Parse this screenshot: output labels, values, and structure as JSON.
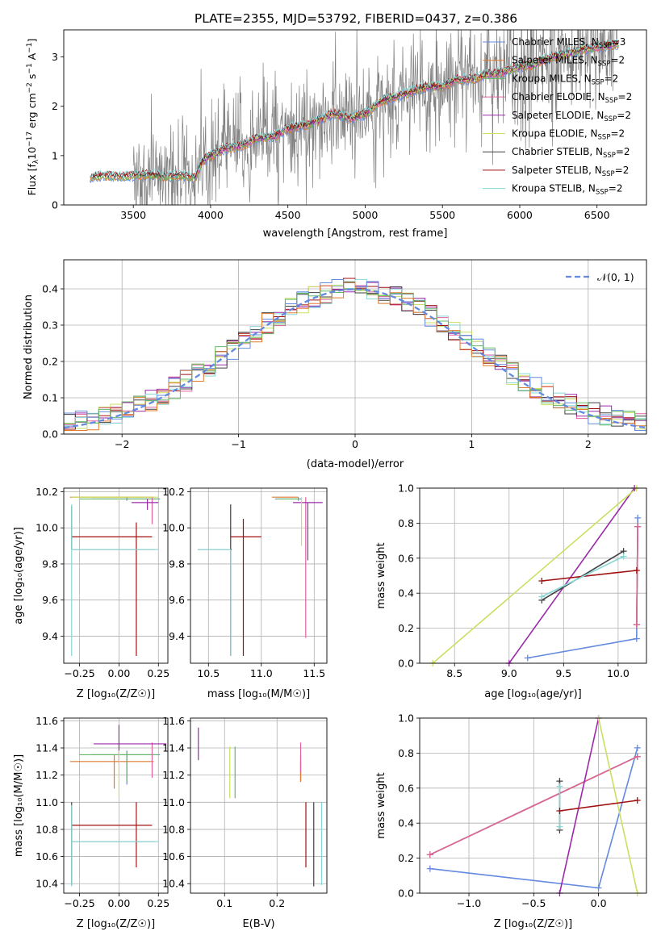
{
  "title": "PLATE=2355, MJD=53792, FIBERID=0437, z=0.386",
  "colors": {
    "chabrier_miles": "#6489e0",
    "salpeter_miles": "#e07a2e",
    "kroupa_miles": "#64b864",
    "chabrier_elodie": "#e060a0",
    "salpeter_elodie": "#9a2aa8",
    "kroupa_elodie": "#c8e060",
    "chabrier_stelib": "#404040",
    "salpeter_stelib": "#a01010",
    "kroupa_stelib": "#88d8d8",
    "data": "#808080",
    "normal": "#6489e0"
  },
  "chart_data": [
    {
      "id": "spectrum",
      "type": "line",
      "xlabel": "wavelength [Angstrom, rest frame]",
      "ylabel": "Flux [f",
      "xlim": [
        3050,
        6820
      ],
      "ylim": [
        0,
        3.55
      ],
      "xticks": [
        "3500",
        "4000",
        "4500",
        "5000",
        "5500",
        "6000",
        "6500"
      ],
      "yticks": [
        "0",
        "1",
        "2",
        "3"
      ],
      "legend": [
        "Chabrier MILES, N",
        "Salpeter MILES, N",
        "Kroupa MILES, N",
        "Chabrier ELODIE, N",
        "Salpeter ELODIE, N",
        "Kroupa ELODIE, N",
        "Chabrier STELIB, N",
        "Salpeter STELIB, N",
        "Kroupa STELIB, N"
      ],
      "legend_n": [
        "3",
        "2",
        "2",
        "2",
        "2",
        "2",
        "2",
        "2",
        "2"
      ],
      "legend_position": "upper-right",
      "model_envelope": {
        "x": [
          3200,
          3220,
          3300,
          3400,
          3500,
          3600,
          3700,
          3800,
          3900,
          3950,
          4000,
          4100,
          4200,
          4300,
          4400,
          4500,
          4600,
          4700,
          4800,
          4900,
          5000,
          5100,
          5200,
          5300,
          5400,
          5500,
          5600,
          5700,
          5800,
          5900,
          6000,
          6100,
          6200,
          6300,
          6400,
          6500,
          6600
        ],
        "y": [
          0.35,
          0.55,
          0.6,
          0.58,
          0.6,
          0.62,
          0.57,
          0.6,
          0.55,
          0.9,
          1.0,
          1.15,
          1.2,
          1.35,
          1.38,
          1.55,
          1.6,
          1.72,
          1.85,
          1.75,
          1.85,
          2.1,
          2.2,
          2.3,
          2.4,
          2.4,
          2.55,
          2.55,
          2.65,
          2.7,
          2.8,
          2.85,
          3.0,
          3.05,
          3.15,
          3.2,
          3.25
        ]
      }
    },
    {
      "id": "residuals",
      "type": "histogram",
      "xlabel": "(data-model)/error",
      "ylabel": "Normed distribution",
      "xlim": [
        -2.5,
        2.5
      ],
      "ylim": [
        0,
        0.48
      ],
      "xticks": [
        "−2",
        "−1",
        "0",
        "1",
        "2"
      ],
      "yticks": [
        "0.0",
        "0.1",
        "0.2",
        "0.3",
        "0.4"
      ],
      "legend": [
        "𝒩(0, 1)"
      ],
      "legend_position": "upper-right"
    },
    {
      "id": "age_vs_Z",
      "type": "errorbar",
      "xlabel": "Z [log₁₀(Z/Z☉)]",
      "ylabel": "age  [log₁₀(age/yr)]",
      "xlim": [
        -0.35,
        0.31
      ],
      "ylim": [
        9.25,
        10.22
      ],
      "xticks": [
        "−0.25",
        "0.00",
        "0.25"
      ],
      "yticks": [
        "9.4",
        "9.6",
        "9.8",
        "10.0",
        "10.2"
      ],
      "points": [
        {
          "m": "chabrier_miles",
          "x": 0.05,
          "xerr": [
            0.22,
            0.21
          ],
          "y": 10.16,
          "yerr": [
            0.01,
            0.01
          ]
        },
        {
          "m": "salpeter_miles",
          "x": -0.03,
          "xerr": [
            0.28,
            0.25
          ],
          "y": 10.17,
          "yerr": [
            0.0,
            0.0
          ]
        },
        {
          "m": "kroupa_miles",
          "x": 0.05,
          "xerr": [
            0.3,
            0.2
          ],
          "y": 10.16,
          "yerr": [
            0.0,
            0.0
          ]
        },
        {
          "m": "chabrier_elodie",
          "x": 0.21,
          "xerr": [
            0.0,
            0.0
          ],
          "y": 10.15,
          "yerr": [
            0.13,
            0.02
          ]
        },
        {
          "m": "salpeter_elodie",
          "x": 0.18,
          "xerr": [
            0.1,
            0.07
          ],
          "y": 10.14,
          "yerr": [
            0.04,
            0.02
          ]
        },
        {
          "m": "kroupa_elodie",
          "x": 0.0,
          "xerr": [
            0.3,
            0.25
          ],
          "y": 10.17,
          "yerr": [
            0.02,
            0.0
          ]
        },
        {
          "m": "chabrier_stelib",
          "x": -0.3,
          "xerr": [
            0.0,
            0.53
          ],
          "y": 9.88,
          "yerr": [
            0.0,
            0.24
          ]
        },
        {
          "m": "salpeter_stelib",
          "x": 0.11,
          "xerr": [
            0.41,
            0.1
          ],
          "y": 9.95,
          "yerr": [
            0.66,
            0.08
          ]
        },
        {
          "m": "kroupa_stelib",
          "x": -0.3,
          "xerr": [
            0.0,
            0.55
          ],
          "y": 9.88,
          "yerr": [
            0.59,
            0.25
          ]
        }
      ]
    },
    {
      "id": "age_vs_mass",
      "type": "errorbar",
      "xlabel": "mass [log₁₀(M/M☉)]",
      "xlim": [
        10.33,
        11.62
      ],
      "ylim": [
        9.25,
        10.22
      ],
      "xticks": [
        "10.5",
        "11.0",
        "11.5"
      ],
      "yticks": [
        "9.4",
        "9.6",
        "9.8",
        "10.0",
        "10.2"
      ],
      "points": [
        {
          "m": "chabrier_miles",
          "x": 11.35,
          "xerr": [
            0.22,
            0.03
          ],
          "y": 10.16,
          "yerr": [
            0.01,
            0.01
          ]
        },
        {
          "m": "salpeter_miles",
          "x": 11.3,
          "xerr": [
            0.2,
            0.05
          ],
          "y": 10.17,
          "yerr": [
            0.0,
            0.0
          ]
        },
        {
          "m": "kroupa_miles",
          "x": 11.35,
          "xerr": [
            0.2,
            0.02
          ],
          "y": 10.16,
          "yerr": [
            0.0,
            0.0
          ]
        },
        {
          "m": "chabrier_elodie",
          "x": 11.42,
          "xerr": [
            0.0,
            0.0
          ],
          "y": 10.15,
          "yerr": [
            0.76,
            0.02
          ]
        },
        {
          "m": "salpeter_elodie",
          "x": 11.44,
          "xerr": [
            0.14,
            0.14
          ],
          "y": 10.14,
          "yerr": [
            0.32,
            0.0
          ]
        },
        {
          "m": "kroupa_elodie",
          "x": 11.38,
          "xerr": [
            0.0,
            0.0
          ],
          "y": 10.17,
          "yerr": [
            0.27,
            0.0
          ]
        },
        {
          "m": "chabrier_stelib",
          "x": 10.71,
          "xerr": [
            0.31,
            0.01
          ],
          "y": 9.88,
          "yerr": [
            0.59,
            0.25
          ]
        },
        {
          "m": "salpeter_stelib",
          "x": 10.83,
          "xerr": [
            0.12,
            0.17
          ],
          "y": 9.95,
          "yerr": [
            0.66,
            0.1
          ]
        },
        {
          "m": "kroupa_stelib",
          "x": 10.71,
          "xerr": [
            0.31,
            0.0
          ],
          "y": 9.88,
          "yerr": [
            0.59,
            0.0
          ]
        }
      ]
    },
    {
      "id": "weight_vs_age",
      "type": "line",
      "xlabel": "age  [log₁₀(age/yr)]",
      "ylabel": "mass weight",
      "xlim": [
        8.18,
        10.26
      ],
      "ylim": [
        0,
        1.0
      ],
      "xticks": [
        "8.5",
        "9.0",
        "9.5",
        "10.0"
      ],
      "yticks": [
        "0.0",
        "0.2",
        "0.4",
        "0.6",
        "0.8",
        "1.0"
      ],
      "series": [
        {
          "m": "chabrier_miles",
          "x": [
            9.17,
            10.17,
            10.18
          ],
          "y": [
            0.03,
            0.14,
            0.83
          ]
        },
        {
          "m": "salpeter_miles",
          "x": [
            10.17,
            10.18
          ],
          "y": [
            0.22,
            0.78
          ]
        },
        {
          "m": "kroupa_miles",
          "x": [
            10.17,
            10.18
          ],
          "y": [
            0.22,
            0.78
          ]
        },
        {
          "m": "chabrier_elodie",
          "x": [
            10.17,
            10.18
          ],
          "y": [
            0.22,
            0.78
          ]
        },
        {
          "m": "salpeter_elodie",
          "x": [
            9.0,
            10.15
          ],
          "y": [
            0.0,
            1.0
          ]
        },
        {
          "m": "kroupa_elodie",
          "x": [
            8.3,
            10.17
          ],
          "y": [
            0.0,
            1.0
          ]
        },
        {
          "m": "chabrier_stelib",
          "x": [
            9.3,
            10.05
          ],
          "y": [
            0.36,
            0.64
          ]
        },
        {
          "m": "salpeter_stelib",
          "x": [
            9.3,
            10.17
          ],
          "y": [
            0.47,
            0.53
          ]
        },
        {
          "m": "kroupa_stelib",
          "x": [
            9.3,
            10.05
          ],
          "y": [
            0.38,
            0.61
          ]
        }
      ]
    },
    {
      "id": "mass_vs_Z",
      "type": "errorbar",
      "xlabel": "Z [log₁₀(Z/Z☉)]",
      "ylabel": "mass [log₁₀(M/M☉)]",
      "xlim": [
        -0.35,
        0.31
      ],
      "ylim": [
        10.33,
        11.62
      ],
      "xticks": [
        "−0.25",
        "0.00",
        "0.25"
      ],
      "yticks": [
        "10.4",
        "10.6",
        "10.8",
        "11.0",
        "11.2",
        "11.4",
        "11.6"
      ],
      "points": [
        {
          "m": "chabrier_miles",
          "x": 0.05,
          "xerr": [
            0.22,
            0.21
          ],
          "y": 11.35,
          "yerr": [
            0.22,
            0.03
          ]
        },
        {
          "m": "salpeter_miles",
          "x": -0.03,
          "xerr": [
            0.28,
            0.25
          ],
          "y": 11.3,
          "yerr": [
            0.2,
            0.05
          ]
        },
        {
          "m": "kroupa_miles",
          "x": 0.05,
          "xerr": [
            0.3,
            0.2
          ],
          "y": 11.35,
          "yerr": [
            0.2,
            0.02
          ]
        },
        {
          "m": "chabrier_elodie",
          "x": 0.21,
          "xerr": [
            0.0,
            0.0
          ],
          "y": 11.42,
          "yerr": [
            0.24,
            0.02
          ]
        },
        {
          "m": "salpeter_elodie",
          "x": 0.0,
          "xerr": [
            0.16,
            0.3
          ],
          "y": 11.43,
          "yerr": [
            0.14,
            0.14
          ]
        },
        {
          "m": "kroupa_elodie",
          "x": 0.0,
          "xerr": [
            0.0,
            0.0
          ],
          "y": 11.38,
          "yerr": [
            0.35,
            0.0
          ]
        },
        {
          "m": "chabrier_stelib",
          "x": -0.3,
          "xerr": [
            0.0,
            0.53
          ],
          "y": 10.71,
          "yerr": [
            0.32,
            0.29
          ]
        },
        {
          "m": "salpeter_stelib",
          "x": 0.11,
          "xerr": [
            0.41,
            0.1
          ],
          "y": 10.83,
          "yerr": [
            0.31,
            0.17
          ]
        },
        {
          "m": "kroupa_stelib",
          "x": -0.3,
          "xerr": [
            0.0,
            0.55
          ],
          "y": 10.71,
          "yerr": [
            0.33,
            0.27
          ]
        }
      ]
    },
    {
      "id": "mass_vs_ebv",
      "type": "errorbar",
      "xlabel": "E(B-V)",
      "xlim": [
        0.035,
        0.295
      ],
      "ylim": [
        10.33,
        11.62
      ],
      "xticks": [
        "0.1",
        "0.2"
      ],
      "yticks": [
        "10.4",
        "10.6",
        "10.8",
        "11.0",
        "11.2",
        "11.4",
        "11.6"
      ],
      "points": [
        {
          "m": "chabrier_miles",
          "x": 0.245,
          "xerr": [
            0.0,
            0.0
          ],
          "y": 11.35,
          "yerr": [
            0.2,
            0.0
          ]
        },
        {
          "m": "salpeter_miles",
          "x": 0.245,
          "xerr": [
            0.0,
            0.0
          ],
          "y": 11.3,
          "yerr": [
            0.15,
            0.0
          ]
        },
        {
          "m": "kroupa_miles",
          "x": 0.12,
          "xerr": [
            0.0,
            0.0
          ],
          "y": 11.35,
          "yerr": [
            0.32,
            0.06
          ]
        },
        {
          "m": "chabrier_elodie",
          "x": 0.245,
          "xerr": [
            0.0,
            0.0
          ],
          "y": 11.42,
          "yerr": [
            0.2,
            0.02
          ]
        },
        {
          "m": "salpeter_elodie",
          "x": 0.05,
          "xerr": [
            0.0,
            0.0
          ],
          "y": 11.43,
          "yerr": [
            0.12,
            0.12
          ]
        },
        {
          "m": "kroupa_elodie",
          "x": 0.11,
          "xerr": [
            0.0,
            0.0
          ],
          "y": 11.38,
          "yerr": [
            0.35,
            0.03
          ]
        },
        {
          "m": "chabrier_stelib",
          "x": 0.27,
          "xerr": [
            0.0,
            0.0
          ],
          "y": 10.71,
          "yerr": [
            0.33,
            0.29
          ]
        },
        {
          "m": "salpeter_stelib",
          "x": 0.255,
          "xerr": [
            0.0,
            0.0
          ],
          "y": 10.83,
          "yerr": [
            0.31,
            0.17
          ]
        },
        {
          "m": "kroupa_stelib",
          "x": 0.285,
          "xerr": [
            0.0,
            0.0
          ],
          "y": 10.71,
          "yerr": [
            0.32,
            0.29
          ]
        }
      ]
    },
    {
      "id": "weight_vs_Z",
      "type": "line",
      "xlabel": "Z [log₁₀(Z/Z☉)]",
      "ylabel": "mass weight",
      "xlim": [
        -1.38,
        0.37
      ],
      "ylim": [
        0,
        1.0
      ],
      "xticks": [
        "−1.0",
        "−0.5",
        "0.0"
      ],
      "yticks": [
        "0.0",
        "0.2",
        "0.4",
        "0.6",
        "0.8",
        "1.0"
      ],
      "series": [
        {
          "m": "chabrier_miles",
          "x": [
            -1.3,
            0.0,
            0.3
          ],
          "y": [
            0.14,
            0.03,
            0.83
          ]
        },
        {
          "m": "salpeter_miles",
          "x": [
            -1.3,
            0.3
          ],
          "y": [
            0.22,
            0.78
          ]
        },
        {
          "m": "kroupa_miles",
          "x": [
            -1.3,
            0.3
          ],
          "y": [
            0.22,
            0.78
          ]
        },
        {
          "m": "chabrier_elodie",
          "x": [
            -1.3,
            0.3
          ],
          "y": [
            0.22,
            0.78
          ]
        },
        {
          "m": "salpeter_elodie",
          "x": [
            -0.3,
            0.0
          ],
          "y": [
            0.0,
            1.0
          ]
        },
        {
          "m": "kroupa_elodie",
          "x": [
            0.0,
            0.3
          ],
          "y": [
            1.0,
            0.0
          ]
        },
        {
          "m": "chabrier_stelib",
          "x": [
            -0.3,
            -0.3
          ],
          "y": [
            0.36,
            0.64
          ]
        },
        {
          "m": "salpeter_stelib",
          "x": [
            -0.3,
            0.3
          ],
          "y": [
            0.47,
            0.53
          ]
        },
        {
          "m": "kroupa_stelib",
          "x": [
            -0.3,
            -0.3
          ],
          "y": [
            0.38,
            0.61
          ]
        }
      ]
    }
  ]
}
